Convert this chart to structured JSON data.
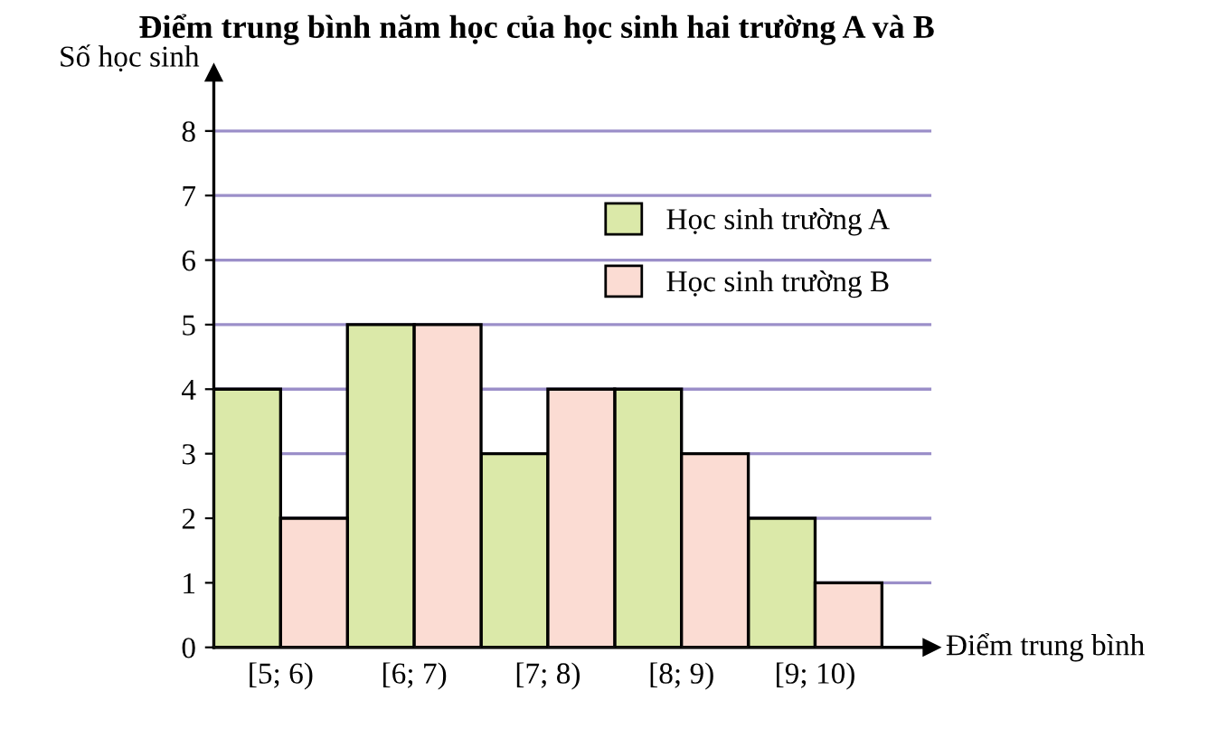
{
  "chart_data": {
    "type": "bar",
    "title": "Điểm trung bình năm học của học sinh hai trường A và B",
    "xlabel": "Điểm trung bình",
    "ylabel": "Số học sinh",
    "categories": [
      "[5; 6)",
      "[6; 7)",
      "[7; 8)",
      "[8; 9)",
      "[9; 10)"
    ],
    "series": [
      {
        "name": "Học sinh trường A",
        "color": "#dbe9a9",
        "values": [
          4,
          5,
          3,
          4,
          2
        ]
      },
      {
        "name": "Học sinh trường B",
        "color": "#fbdcd3",
        "values": [
          2,
          5,
          4,
          3,
          1
        ]
      }
    ],
    "ylim": [
      0,
      8.9
    ],
    "yticks": [
      0,
      1,
      2,
      3,
      4,
      5,
      6,
      7,
      8
    ],
    "grid": "y",
    "legend": "top right"
  }
}
